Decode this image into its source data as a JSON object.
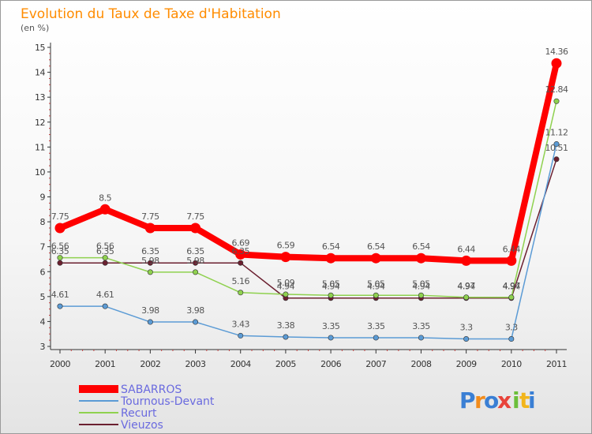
{
  "chart_data": {
    "type": "line",
    "title": "Evolution du Taux de Taxe d'Habitation",
    "subtitle": "(en %)",
    "x": [
      "2000",
      "2001",
      "2002",
      "2003",
      "2004",
      "2005",
      "2006",
      "2007",
      "2008",
      "2009",
      "2010",
      "2011"
    ],
    "ylim": [
      3,
      15
    ],
    "yticks": [
      3,
      4,
      5,
      6,
      7,
      8,
      9,
      10,
      11,
      12,
      13,
      14,
      15
    ],
    "grid": false,
    "legend_position": "bottom-left",
    "series": [
      {
        "name": "SABARROS",
        "color": "#ff0000",
        "values": [
          7.75,
          8.5,
          7.75,
          7.75,
          6.69,
          6.59,
          6.54,
          6.54,
          6.54,
          6.44,
          6.44,
          14.36
        ],
        "labels": [
          "7.75",
          "8.5",
          "7.75",
          "7.75",
          "6.69",
          "6.59",
          "6.54",
          "6.54",
          "6.54",
          "6.44",
          "6.44",
          "14.36"
        ]
      },
      {
        "name": "Tournous-Devant",
        "color": "#5b9bd5",
        "values": [
          4.61,
          4.61,
          3.98,
          3.98,
          3.43,
          3.38,
          3.35,
          3.35,
          3.35,
          3.3,
          3.3,
          11.12
        ],
        "labels": [
          "4.61",
          "4.61",
          "3.98",
          "3.98",
          "3.43",
          "3.38",
          "3.35",
          "3.35",
          "3.35",
          "3.3",
          "3.3",
          "11.12"
        ]
      },
      {
        "name": "Recurt",
        "color": "#8fd14f",
        "values": [
          6.56,
          6.56,
          5.98,
          5.98,
          5.16,
          5.09,
          5.05,
          5.05,
          5.05,
          4.97,
          4.97,
          12.84
        ],
        "labels": [
          "6.56",
          "6.56",
          "5.98",
          "5.98",
          "5.16",
          "5.09",
          "5.05",
          "5.05",
          "5.05",
          "4.97",
          "4.97",
          "12.84"
        ]
      },
      {
        "name": "Vieuzos",
        "color": "#6b2030",
        "values": [
          6.35,
          6.35,
          6.35,
          6.35,
          6.35,
          4.94,
          4.94,
          4.94,
          4.94,
          4.94,
          4.94,
          10.51
        ],
        "labels": [
          "6.35",
          "6.35",
          "6.35",
          "6.35",
          "6.35",
          "4.94",
          "4.94",
          "4.94",
          "4.94",
          "4.94",
          "4.94",
          "10.51"
        ]
      }
    ]
  },
  "logo": {
    "text": "Proxiti",
    "letters": [
      "P",
      "r",
      "o",
      "x",
      "i",
      "t",
      "i"
    ],
    "colors": [
      "#3a7fd4",
      "#f28c1c",
      "#3a7fd4",
      "#e8433a",
      "#6bbf3a",
      "#f2b51c",
      "#3a7fd4"
    ]
  }
}
